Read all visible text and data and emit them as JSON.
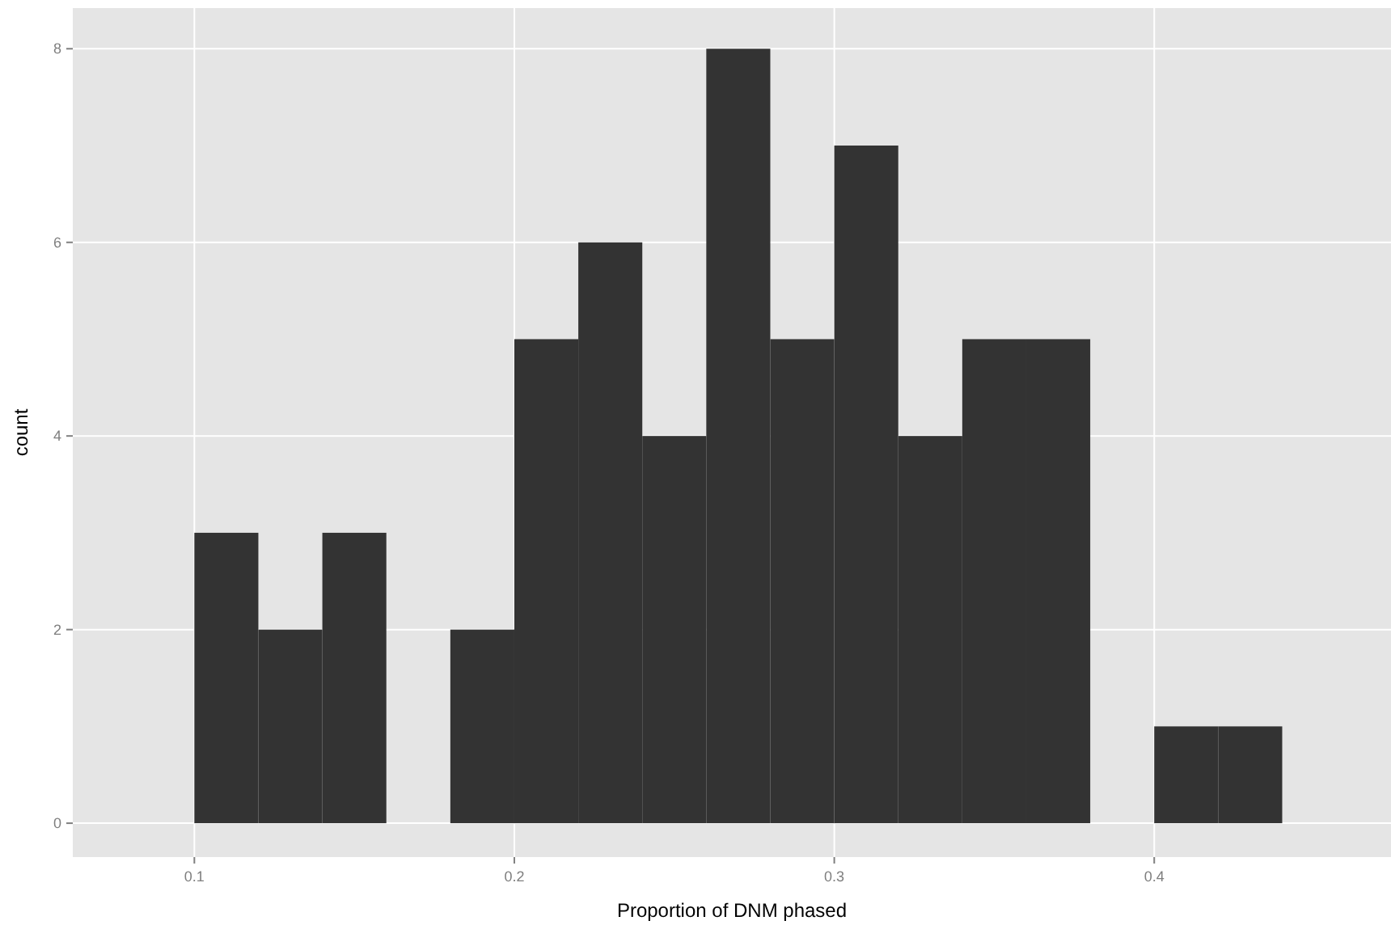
{
  "chart_data": {
    "type": "histogram",
    "xlabel": "Proportion of DNM phased",
    "ylabel": "count",
    "bins": [
      0.1,
      0.12,
      0.14,
      0.16,
      0.18,
      0.2,
      0.22,
      0.24,
      0.26,
      0.28,
      0.3,
      0.32,
      0.34,
      0.36,
      0.38,
      0.4,
      0.42,
      0.44
    ],
    "values": [
      3,
      2,
      3,
      0,
      2,
      5,
      6,
      4,
      8,
      5,
      7,
      4,
      5,
      5,
      0,
      1,
      1
    ],
    "color": "#333333",
    "xlim": [
      0.062,
      0.474
    ],
    "xticks": [
      0.1,
      0.2,
      0.3,
      0.4
    ],
    "ylim": [
      -0.35,
      8.42
    ],
    "yticks": [
      0,
      2,
      4,
      6,
      8
    ],
    "grid": true
  }
}
